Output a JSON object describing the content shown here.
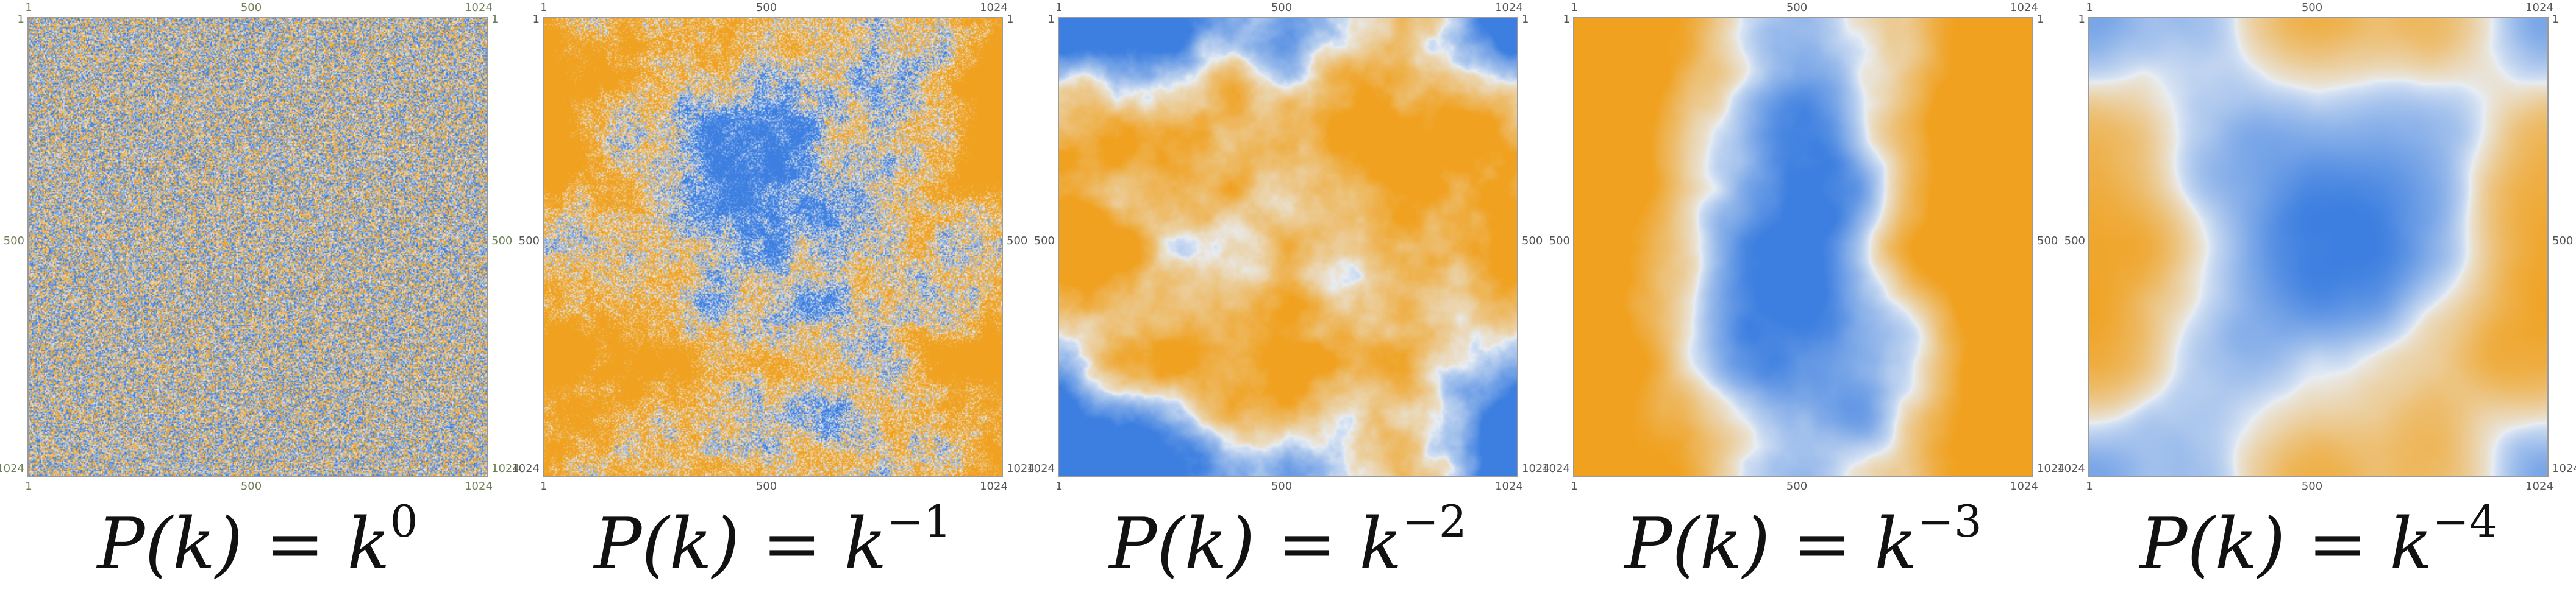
{
  "colors": {
    "orange": "#f0a11f",
    "blue": "#3d7fe0",
    "light": "#e8eef5",
    "frame": "#9a9a9a"
  },
  "ticks": {
    "x_top": [
      "1",
      "500",
      "1024"
    ],
    "x_bottom": [
      "1",
      "500",
      "1024"
    ],
    "y_left": [
      "1",
      "500",
      "1024"
    ],
    "y_right": [
      "1",
      "500",
      "1024"
    ]
  },
  "panels": [
    {
      "lhs": "P(k)",
      "eq": "=",
      "base": "k",
      "exponent": "0"
    },
    {
      "lhs": "P(k)",
      "eq": "=",
      "base": "k",
      "exponent": "−1"
    },
    {
      "lhs": "P(k)",
      "eq": "=",
      "base": "k",
      "exponent": "−2"
    },
    {
      "lhs": "P(k)",
      "eq": "=",
      "base": "k",
      "exponent": "−3"
    },
    {
      "lhs": "P(k)",
      "eq": "=",
      "base": "k",
      "exponent": "−4"
    }
  ]
}
